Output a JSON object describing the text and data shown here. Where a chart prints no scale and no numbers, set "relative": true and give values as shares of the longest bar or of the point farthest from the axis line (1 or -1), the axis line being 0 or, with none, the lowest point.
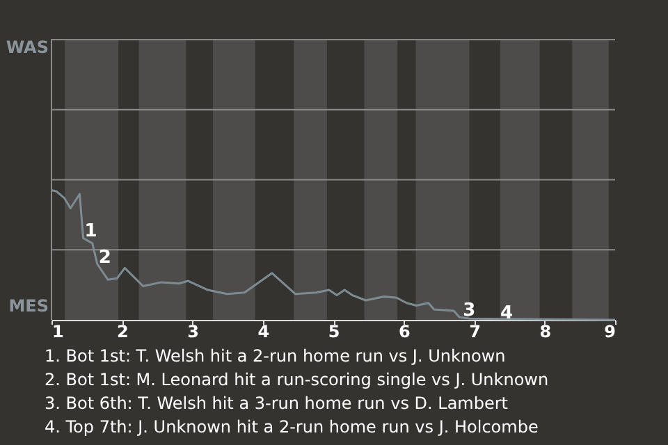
{
  "chart_data": {
    "type": "line",
    "relative": true,
    "x": [
      1,
      1.07,
      1.18,
      1.27,
      1.4,
      1.45,
      1.58,
      1.65,
      1.8,
      1.93,
      2.04,
      2.3,
      2.56,
      2.81,
      2.94,
      3.22,
      3.49,
      3.74,
      4.13,
      4.46,
      4.76,
      4.94,
      5.05,
      5.16,
      5.27,
      5.46,
      5.72,
      5.9,
      6.04,
      6.18,
      6.35,
      6.43,
      6.71,
      6.79,
      6.93,
      9
    ],
    "series": [
      {
        "color": "#7d8b93",
        "values": [
          1,
          0.99,
          0.94,
          0.86,
          0.97,
          0.63,
          0.59,
          0.43,
          0.31,
          0.32,
          0.4,
          0.26,
          0.29,
          0.28,
          0.3,
          0.23,
          0.2,
          0.21,
          0.36,
          0.2,
          0.21,
          0.23,
          0.19,
          0.23,
          0.19,
          0.15,
          0.18,
          0.17,
          0.13,
          0.11,
          0.13,
          0.08,
          0.07,
          0.02,
          0.01,
          0
        ]
      }
    ],
    "xlim": [
      1,
      9
    ],
    "xticks": [
      1,
      2,
      3,
      4,
      5,
      6,
      7,
      8,
      9
    ],
    "marker": "none",
    "line_style": "solid",
    "ref_lines": [
      {
        "axis": "y",
        "value": 0.54,
        "color": "#8a8a8a"
      },
      {
        "axis": "y",
        "value": 1.08,
        "color": "#8a8a8a"
      },
      {
        "axis": "y",
        "value": 1.62,
        "color": "#8a8a8a"
      },
      {
        "axis": "y",
        "value": 2.16,
        "color": "#8a8a8a"
      }
    ],
    "bands": [
      {
        "axis": "x",
        "from": 1.19,
        "to": 1.95,
        "color": "#4d4c4a"
      },
      {
        "axis": "x",
        "from": 2.24,
        "to": 2.91,
        "color": "#4d4c4a"
      },
      {
        "axis": "x",
        "from": 3.29,
        "to": 3.89,
        "color": "#4d4c4a"
      },
      {
        "axis": "x",
        "from": 4.44,
        "to": 4.91,
        "color": "#4d4c4a"
      },
      {
        "axis": "x",
        "from": 5.44,
        "to": 5.91,
        "color": "#4d4c4a"
      },
      {
        "axis": "x",
        "from": 6.17,
        "to": 6.93,
        "color": "#4d4c4a"
      },
      {
        "axis": "x",
        "from": 7.37,
        "to": 7.93,
        "color": "#4d4c4a"
      },
      {
        "axis": "x",
        "from": 8.39,
        "to": 8.91,
        "color": "#4d4c4a"
      }
    ],
    "annotations": [
      "WAS",
      "MES",
      {
        "text": "1",
        "x": 1.45,
        "y": 0.63
      },
      {
        "text": "2",
        "x": 1.65,
        "y": 0.43
      },
      {
        "text": "3",
        "x": 6.82,
        "y": 0.02
      },
      {
        "text": "4",
        "x": 7.35,
        "y": 0
      },
      "1. Bot 1st: T. Welsh hit a 2-run home run vs J. Unknown",
      "2. Bot 1st: M. Leonard hit a run-scoring single vs J. Unknown",
      "3. Bot 6th: T. Welsh hit a 3-run home run vs D. Lambert",
      "4. Top 7th: J. Unknown hit a 2-run home run vs J. Holcombe"
    ]
  }
}
